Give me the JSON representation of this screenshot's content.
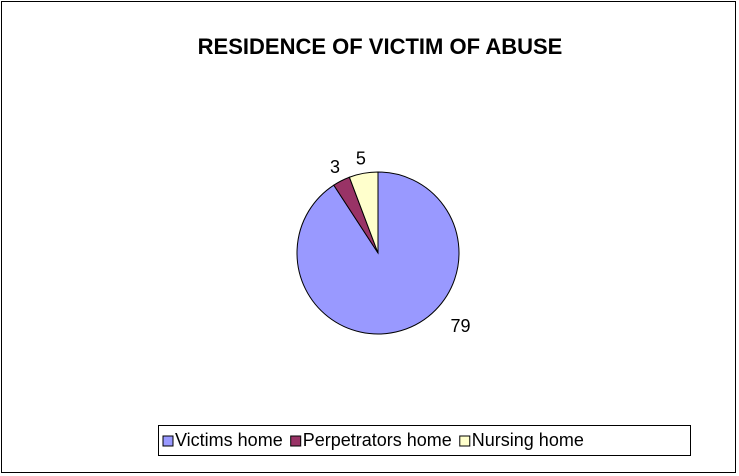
{
  "chart_data": {
    "type": "pie",
    "title": "RESIDENCE OF VICTIM OF ABUSE",
    "categories": [
      "Victims home",
      "Perpetrators home",
      "Nursing home"
    ],
    "values": [
      79,
      3,
      5
    ],
    "colors": [
      "#9999ff",
      "#993366",
      "#ffffcc"
    ],
    "legend": "bottom"
  }
}
